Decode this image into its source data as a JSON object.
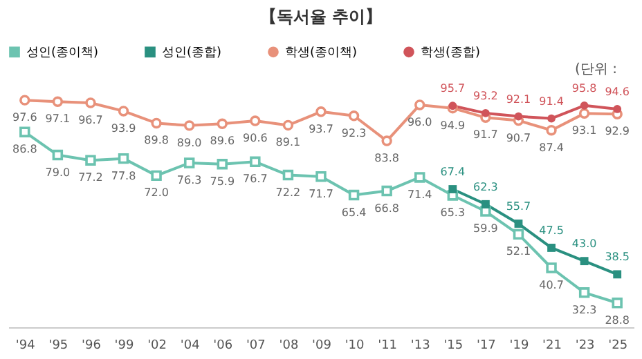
{
  "chart_data": {
    "type": "line",
    "title": "【독서율 추이】",
    "annotations": [
      "(단위 :"
    ],
    "categories": [
      "'94",
      "'95",
      "'96",
      "'99",
      "'02",
      "'04",
      "'06",
      "'07",
      "'08",
      "'09",
      "'10",
      "'11",
      "'13",
      "'15",
      "'17",
      "'19",
      "'21",
      "'23",
      "'25"
    ],
    "series": [
      {
        "name": "성인(종이책)",
        "color": "#6cc3b0",
        "marker": "square",
        "values": [
          86.8,
          79.0,
          77.2,
          77.8,
          72.0,
          76.3,
          75.9,
          76.7,
          72.2,
          71.7,
          65.4,
          66.8,
          71.4,
          65.3,
          59.9,
          52.1,
          40.7,
          32.3,
          28.8
        ],
        "value_labels": [
          "86.8",
          "79.0",
          "77.2",
          "77.8",
          "72.0",
          "76.3",
          "75.9",
          "76.7",
          "72.2",
          "71.7",
          "65.4",
          "66.8",
          "71.4",
          "65.3",
          "59.9",
          "52.1",
          "40.7",
          "32.3",
          "28.8"
        ]
      },
      {
        "name": "성인(종합)",
        "color": "#2a9080",
        "marker": "square",
        "values": [
          null,
          null,
          null,
          null,
          null,
          null,
          null,
          null,
          null,
          null,
          null,
          null,
          null,
          67.4,
          62.3,
          55.7,
          47.5,
          43.0,
          38.5
        ],
        "value_labels": [
          null,
          null,
          null,
          null,
          null,
          null,
          null,
          null,
          null,
          null,
          null,
          null,
          null,
          "67.4",
          "62.3",
          "55.7",
          "47.5",
          "43.0",
          "38.5"
        ]
      },
      {
        "name": "학생(종이책)",
        "color": "#e8917a",
        "marker": "circle",
        "values": [
          97.6,
          97.1,
          96.7,
          93.9,
          89.8,
          89.0,
          89.6,
          90.6,
          89.1,
          93.7,
          92.3,
          83.8,
          96.0,
          94.9,
          91.7,
          90.7,
          87.4,
          93.1,
          92.9
        ],
        "value_labels": [
          "97.6",
          "97.1",
          "96.7",
          "93.9",
          "89.8",
          "89.0",
          "89.6",
          "90.6",
          "89.1",
          "93.7",
          "92.3",
          "83.8",
          "96.0",
          "94.9",
          "91.7",
          "90.7",
          "87.4",
          "93.1",
          "92.9"
        ]
      },
      {
        "name": "학생(종합)",
        "color": "#d0545a",
        "marker": "circle",
        "values": [
          null,
          null,
          null,
          null,
          null,
          null,
          null,
          null,
          null,
          null,
          null,
          null,
          null,
          95.7,
          93.2,
          92.1,
          91.4,
          95.8,
          94.6
        ],
        "value_labels": [
          null,
          null,
          null,
          null,
          null,
          null,
          null,
          null,
          null,
          null,
          null,
          null,
          null,
          "95.7",
          "93.2",
          "92.1",
          "91.4",
          "95.8",
          "94.6"
        ]
      }
    ],
    "legend": "top",
    "grid": false
  }
}
